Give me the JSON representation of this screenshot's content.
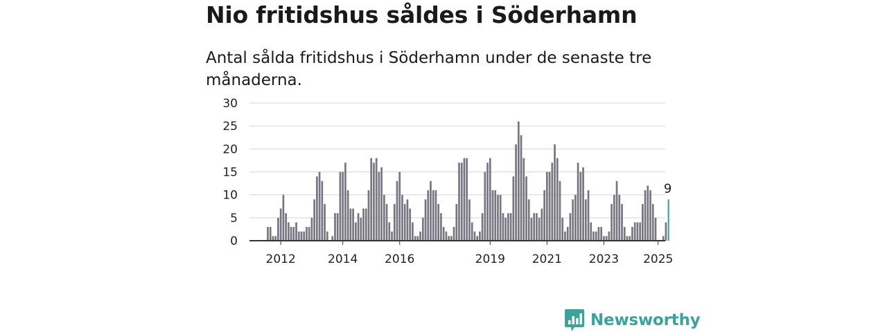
{
  "headline": "Nio fritidshus såldes i Söderhamn",
  "subtitle": "Antal sålda fritidshus i Söderhamn under de senaste tre månaderna.",
  "brand": {
    "name": "Newsworthy",
    "icon": "newsworthy-logo-icon",
    "color": "#3aa39a"
  },
  "chart_data": {
    "type": "bar",
    "ylim": [
      0,
      30
    ],
    "yticks": [
      0,
      5,
      10,
      15,
      20,
      25,
      30
    ],
    "xticks": [
      "2012",
      "2014",
      "2016",
      "2019",
      "2021",
      "2023",
      "2025"
    ],
    "xtick_positions": [
      5,
      29,
      51,
      86,
      108,
      130,
      151
    ],
    "grid": true,
    "bar_color": "#767580",
    "highlight_color": "#2e9e96",
    "highlight_label": "9",
    "values": [
      3,
      3,
      1,
      1,
      5,
      7,
      10,
      6,
      4,
      3,
      3,
      4,
      2,
      2,
      2,
      3,
      3,
      5,
      9,
      14,
      15,
      13,
      8,
      2,
      0,
      1,
      6,
      6,
      15,
      15,
      17,
      11,
      7,
      7,
      4,
      6,
      5,
      7,
      7,
      11,
      18,
      17,
      18,
      15,
      16,
      10,
      8,
      4,
      2,
      8,
      13,
      15,
      10,
      8,
      9,
      7,
      4,
      1,
      1,
      2,
      5,
      9,
      11,
      13,
      11,
      11,
      8,
      6,
      3,
      2,
      1,
      1,
      3,
      8,
      17,
      17,
      18,
      18,
      9,
      4,
      2,
      1,
      2,
      6,
      15,
      17,
      18,
      11,
      11,
      10,
      10,
      6,
      5,
      6,
      6,
      14,
      21,
      26,
      23,
      18,
      14,
      9,
      5,
      6,
      6,
      5,
      7,
      11,
      15,
      15,
      17,
      21,
      18,
      13,
      5,
      2,
      3,
      6,
      9,
      10,
      17,
      15,
      16,
      9,
      11,
      4,
      2,
      2,
      3,
      3,
      1,
      1,
      2,
      8,
      10,
      13,
      10,
      8,
      3,
      1,
      1,
      3,
      4,
      4,
      4,
      8,
      11,
      12,
      11,
      8,
      5,
      0,
      0,
      1,
      4,
      9
    ]
  }
}
